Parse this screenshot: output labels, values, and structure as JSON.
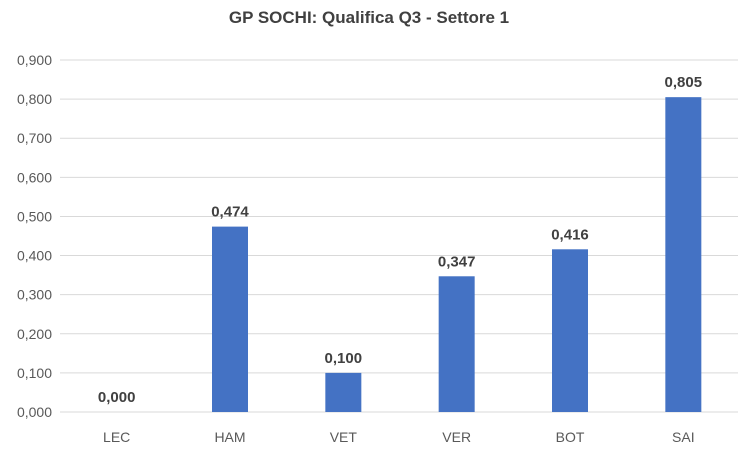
{
  "chart_data": {
    "type": "bar",
    "title": "GP SOCHI: Qualifica Q3 - Settore 1",
    "xlabel": "",
    "ylabel": "",
    "categories": [
      "LEC",
      "HAM",
      "VET",
      "VER",
      "BOT",
      "SAI"
    ],
    "values": [
      0.0,
      0.474,
      0.1,
      0.347,
      0.416,
      0.805
    ],
    "data_labels": [
      "0,000",
      "0,474",
      "0,100",
      "0,347",
      "0,416",
      "0,805"
    ],
    "ylim": [
      0,
      0.9
    ],
    "yticks": [
      0,
      0.1,
      0.2,
      0.3,
      0.4,
      0.5,
      0.6,
      0.7,
      0.8,
      0.9
    ],
    "ytick_labels": [
      "0,000",
      "0,100",
      "0,200",
      "0,300",
      "0,400",
      "0,500",
      "0,600",
      "0,700",
      "0,800",
      "0,900"
    ],
    "grid": true,
    "legend": "none",
    "bar_color": "#4472c4",
    "grid_color": "#d9d9d9"
  }
}
